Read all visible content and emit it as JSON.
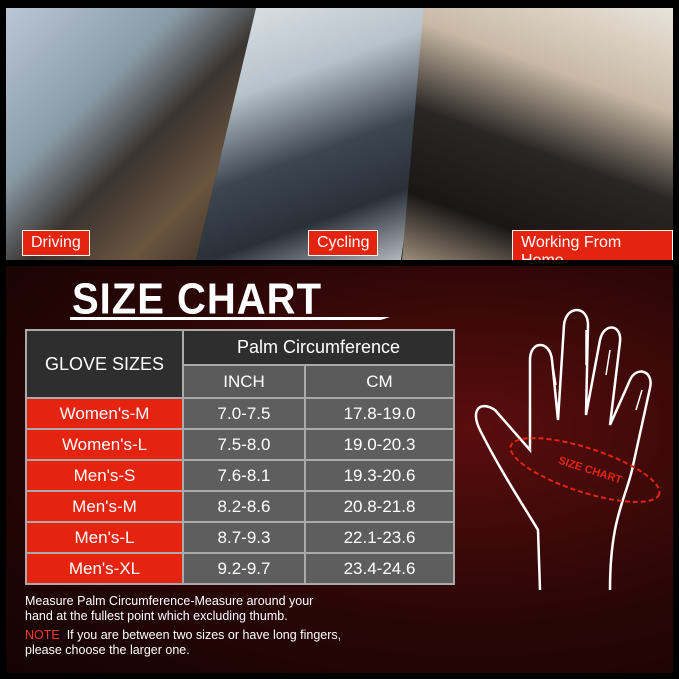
{
  "photos": [
    {
      "label": "Driving"
    },
    {
      "label": "Cycling"
    },
    {
      "label": "Working From Home"
    }
  ],
  "title": "SIZE CHART",
  "table": {
    "col1": "GLOVE SIZES",
    "group": "Palm Circumference",
    "col2": "INCH",
    "col3": "CM",
    "rows": [
      {
        "size": "Women's-M",
        "inch": "7.0-7.5",
        "cm": "17.8-19.0"
      },
      {
        "size": "Women's-L",
        "inch": "7.5-8.0",
        "cm": "19.0-20.3"
      },
      {
        "size": "Men's-S",
        "inch": "7.6-8.1",
        "cm": "19.3-20.6"
      },
      {
        "size": "Men's-M",
        "inch": "8.2-8.6",
        "cm": "20.8-21.8"
      },
      {
        "size": "Men's-L",
        "inch": "8.7-9.3",
        "cm": "22.1-23.6"
      },
      {
        "size": "Men's-XL",
        "inch": "9.2-9.7",
        "cm": "23.4-24.6"
      }
    ]
  },
  "hand_label": "SIZE CHART",
  "measure_line1": "Measure Palm Circumference-Measure around your",
  "measure_line2": "hand at the fullest point which excluding thumb.",
  "note_label": "NOTE",
  "note_line1": "If you are between two sizes or have long fingers,",
  "note_line2": "please choose the larger one.",
  "colors": {
    "accent": "#e5240f",
    "background": "#2a0606"
  }
}
